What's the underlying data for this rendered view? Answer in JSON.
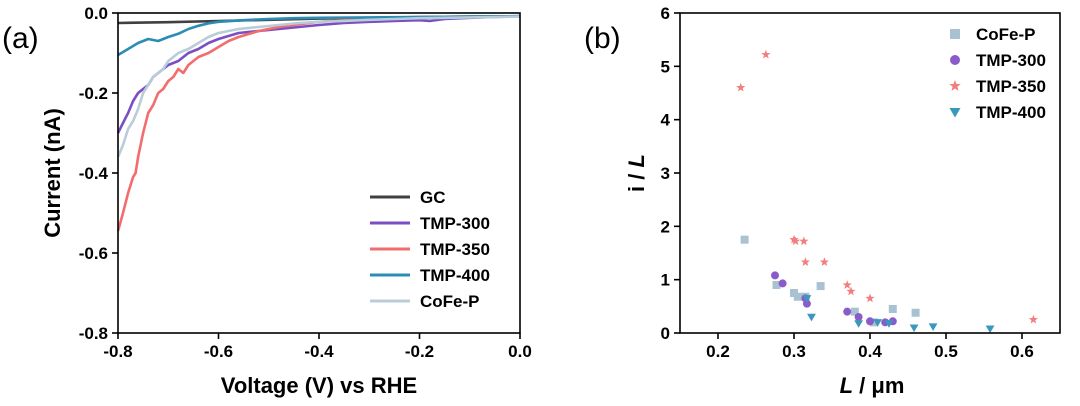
{
  "chart_data": [
    {
      "type": "line",
      "panel_label": "(a)",
      "xlabel": "Voltage (V) vs RHE",
      "ylabel": "Current (nA)",
      "xlim": [
        -0.8,
        0.0
      ],
      "ylim": [
        -0.8,
        0.0
      ],
      "xticks": [
        -0.8,
        -0.6,
        -0.4,
        -0.2,
        0.0
      ],
      "yticks": [
        0.0,
        -0.2,
        -0.4,
        -0.6,
        -0.8
      ],
      "xtick_labels": [
        "-0.8",
        "-0.6",
        "-0.4",
        "-0.2",
        "0.0"
      ],
      "ytick_labels": [
        "0.0",
        "-0.2",
        "-0.4",
        "-0.6",
        "-0.8"
      ],
      "legend_position": "bottom-right",
      "grid": false,
      "series": [
        {
          "name": "GC",
          "color": "#404040",
          "x": [
            -0.8,
            -0.7,
            -0.6,
            -0.5,
            -0.4,
            -0.3,
            -0.2,
            -0.1,
            0.0
          ],
          "y": [
            -0.025,
            -0.023,
            -0.02,
            -0.017,
            -0.014,
            -0.012,
            -0.01,
            -0.009,
            -0.008
          ]
        },
        {
          "name": "TMP-300",
          "color": "#7b4fc4",
          "x": [
            -0.8,
            -0.79,
            -0.78,
            -0.77,
            -0.76,
            -0.75,
            -0.74,
            -0.73,
            -0.72,
            -0.7,
            -0.68,
            -0.66,
            -0.64,
            -0.62,
            -0.6,
            -0.56,
            -0.52,
            -0.48,
            -0.44,
            -0.4,
            -0.35,
            -0.3,
            -0.25,
            -0.2,
            -0.18,
            -0.15,
            -0.1,
            -0.05,
            0.0
          ],
          "y": [
            -0.3,
            -0.275,
            -0.25,
            -0.22,
            -0.2,
            -0.19,
            -0.18,
            -0.16,
            -0.15,
            -0.13,
            -0.12,
            -0.1,
            -0.09,
            -0.075,
            -0.065,
            -0.05,
            -0.045,
            -0.04,
            -0.035,
            -0.03,
            -0.025,
            -0.022,
            -0.02,
            -0.018,
            -0.02,
            -0.015,
            -0.012,
            -0.01,
            -0.008
          ]
        },
        {
          "name": "TMP-350",
          "color": "#f26d6d",
          "x": [
            -0.8,
            -0.79,
            -0.78,
            -0.77,
            -0.765,
            -0.76,
            -0.755,
            -0.75,
            -0.74,
            -0.73,
            -0.72,
            -0.71,
            -0.7,
            -0.69,
            -0.68,
            -0.67,
            -0.66,
            -0.65,
            -0.64,
            -0.62,
            -0.6,
            -0.58,
            -0.56,
            -0.52,
            -0.48,
            -0.44,
            -0.4,
            -0.35,
            -0.3,
            -0.25,
            -0.2,
            -0.1,
            0.0
          ],
          "y": [
            -0.545,
            -0.5,
            -0.45,
            -0.41,
            -0.4,
            -0.36,
            -0.33,
            -0.3,
            -0.25,
            -0.23,
            -0.2,
            -0.19,
            -0.17,
            -0.16,
            -0.14,
            -0.15,
            -0.13,
            -0.12,
            -0.11,
            -0.1,
            -0.085,
            -0.07,
            -0.06,
            -0.045,
            -0.035,
            -0.028,
            -0.022,
            -0.018,
            -0.015,
            -0.013,
            -0.012,
            -0.01,
            -0.008
          ]
        },
        {
          "name": "TMP-400",
          "color": "#2b8cb4",
          "x": [
            -0.8,
            -0.78,
            -0.76,
            -0.74,
            -0.72,
            -0.7,
            -0.68,
            -0.66,
            -0.64,
            -0.62,
            -0.6,
            -0.55,
            -0.5,
            -0.45,
            -0.4,
            -0.3,
            -0.2,
            -0.1,
            0.0
          ],
          "y": [
            -0.105,
            -0.09,
            -0.075,
            -0.065,
            -0.07,
            -0.06,
            -0.052,
            -0.04,
            -0.032,
            -0.026,
            -0.022,
            -0.018,
            -0.015,
            -0.013,
            -0.012,
            -0.011,
            -0.01,
            -0.009,
            -0.008
          ]
        },
        {
          "name": "CoFe-P",
          "color": "#b9cdd8",
          "x": [
            -0.8,
            -0.79,
            -0.78,
            -0.77,
            -0.76,
            -0.75,
            -0.74,
            -0.73,
            -0.72,
            -0.71,
            -0.7,
            -0.69,
            -0.68,
            -0.66,
            -0.64,
            -0.62,
            -0.6,
            -0.56,
            -0.52,
            -0.48,
            -0.44,
            -0.4,
            -0.35,
            -0.3,
            -0.25,
            -0.2,
            -0.1,
            0.0
          ],
          "y": [
            -0.36,
            -0.33,
            -0.29,
            -0.27,
            -0.24,
            -0.2,
            -0.18,
            -0.16,
            -0.15,
            -0.14,
            -0.12,
            -0.11,
            -0.1,
            -0.09,
            -0.075,
            -0.06,
            -0.05,
            -0.04,
            -0.035,
            -0.03,
            -0.025,
            -0.022,
            -0.02,
            -0.017,
            -0.015,
            -0.013,
            -0.011,
            -0.009
          ]
        }
      ]
    },
    {
      "type": "scatter",
      "panel_label": "(b)",
      "xlabel_italic": "L",
      "xlabel_rest": " / μm",
      "ylabel_plain": "i / ",
      "ylabel_italic": "L",
      "xlim": [
        0.15,
        0.65
      ],
      "ylim": [
        0,
        6
      ],
      "xticks": [
        0.2,
        0.3,
        0.4,
        0.5,
        0.6
      ],
      "yticks": [
        0,
        1,
        2,
        3,
        4,
        5,
        6
      ],
      "xtick_labels": [
        "0.2",
        "0.3",
        "0.4",
        "0.5",
        "0.6"
      ],
      "ytick_labels": [
        "0",
        "1",
        "2",
        "3",
        "4",
        "5",
        "6"
      ],
      "legend_position": "top-right",
      "grid": false,
      "series": [
        {
          "name": "CoFe-P",
          "color": "#a9c2d1",
          "marker": "square",
          "x": [
            0.235,
            0.277,
            0.3,
            0.305,
            0.315,
            0.335,
            0.38,
            0.405,
            0.43,
            0.46
          ],
          "y": [
            1.75,
            0.9,
            0.75,
            0.68,
            0.68,
            0.88,
            0.4,
            0.2,
            0.45,
            0.38
          ]
        },
        {
          "name": "TMP-300",
          "color": "#8a5cc9",
          "marker": "circle",
          "x": [
            0.275,
            0.285,
            0.315,
            0.317,
            0.37,
            0.385,
            0.4,
            0.42,
            0.43
          ],
          "y": [
            1.08,
            0.93,
            0.65,
            0.55,
            0.4,
            0.3,
            0.22,
            0.2,
            0.22
          ]
        },
        {
          "name": "TMP-350",
          "color": "#f47e7e",
          "marker": "star",
          "x": [
            0.23,
            0.263,
            0.3,
            0.302,
            0.313,
            0.315,
            0.34,
            0.37,
            0.375,
            0.4,
            0.615
          ],
          "y": [
            4.6,
            5.22,
            1.75,
            1.72,
            1.72,
            1.33,
            1.33,
            0.9,
            0.78,
            0.65,
            0.25
          ]
        },
        {
          "name": "TMP-400",
          "color": "#3a98be",
          "marker": "triangle-down",
          "x": [
            0.317,
            0.323,
            0.385,
            0.41,
            0.425,
            0.458,
            0.483,
            0.558
          ],
          "y": [
            0.65,
            0.3,
            0.18,
            0.2,
            0.18,
            0.1,
            0.12,
            0.08
          ]
        }
      ]
    }
  ]
}
